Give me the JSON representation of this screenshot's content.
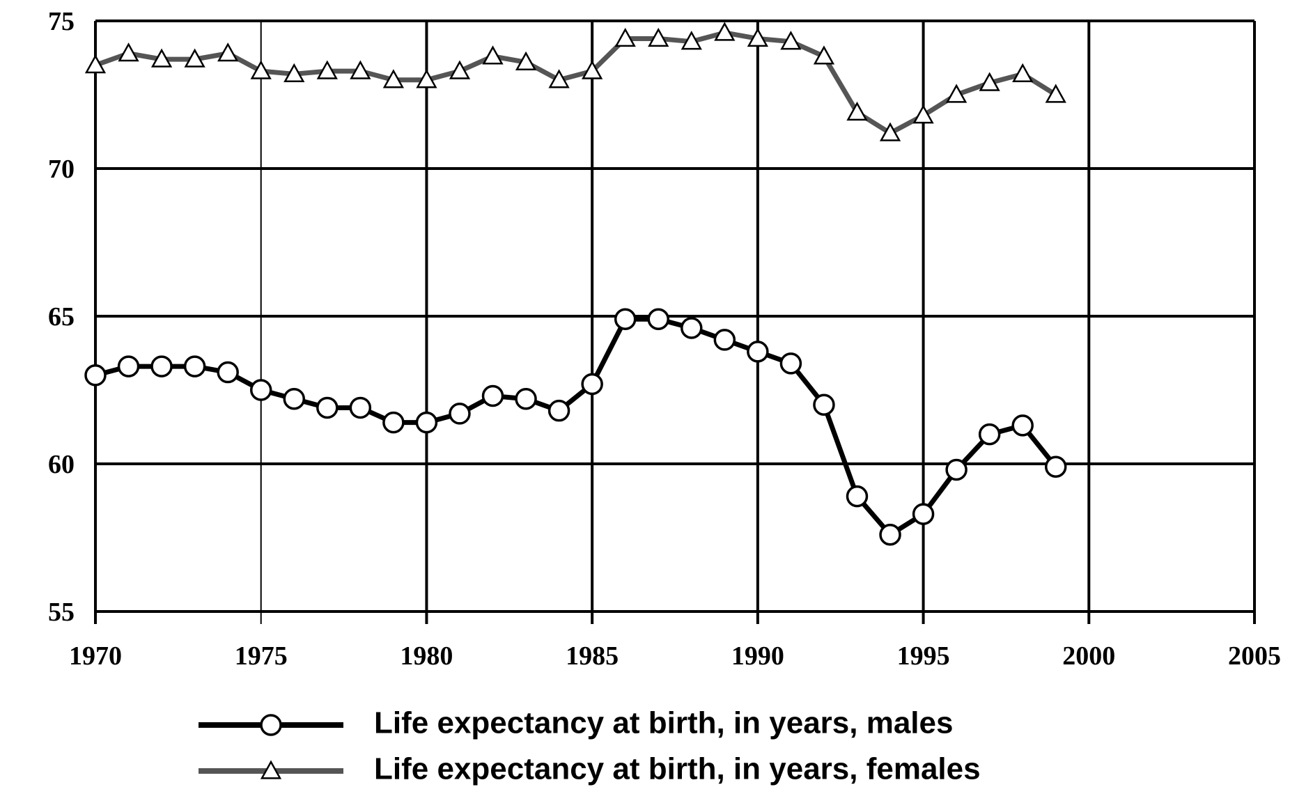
{
  "chart_data": {
    "type": "line",
    "x": [
      1970,
      1971,
      1972,
      1973,
      1974,
      1975,
      1976,
      1977,
      1978,
      1979,
      1980,
      1981,
      1982,
      1983,
      1984,
      1985,
      1986,
      1987,
      1988,
      1989,
      1990,
      1991,
      1992,
      1993,
      1994,
      1995,
      1996,
      1997,
      1998,
      1999
    ],
    "series": [
      {
        "name": "Life expectancy at birth, in years, males",
        "color": "#000000",
        "marker": "circle",
        "values": [
          63.0,
          63.3,
          63.3,
          63.3,
          63.1,
          62.5,
          62.2,
          61.9,
          61.9,
          61.4,
          61.4,
          61.7,
          62.3,
          62.2,
          61.8,
          62.7,
          64.9,
          64.9,
          64.6,
          64.2,
          63.8,
          63.4,
          62.0,
          58.9,
          57.6,
          58.3,
          59.8,
          61.0,
          61.3,
          59.9
        ]
      },
      {
        "name": "Life expectancy at birth, in years, females",
        "color": "#555555",
        "marker": "triangle",
        "values": [
          73.5,
          73.9,
          73.7,
          73.7,
          73.9,
          73.3,
          73.2,
          73.3,
          73.3,
          73.0,
          73.0,
          73.3,
          73.8,
          73.6,
          73.0,
          73.3,
          74.4,
          74.4,
          74.3,
          74.6,
          74.4,
          74.3,
          73.8,
          71.9,
          71.2,
          71.8,
          72.5,
          72.9,
          73.2,
          72.5
        ]
      }
    ],
    "xlim": [
      1970,
      2005
    ],
    "xticks": [
      1970,
      1975,
      1980,
      1985,
      1990,
      1995,
      2000,
      2005
    ],
    "ylim": [
      55,
      75
    ],
    "yticks": [
      55,
      60,
      65,
      70,
      75
    ],
    "grid": true,
    "legend": "bottom"
  }
}
